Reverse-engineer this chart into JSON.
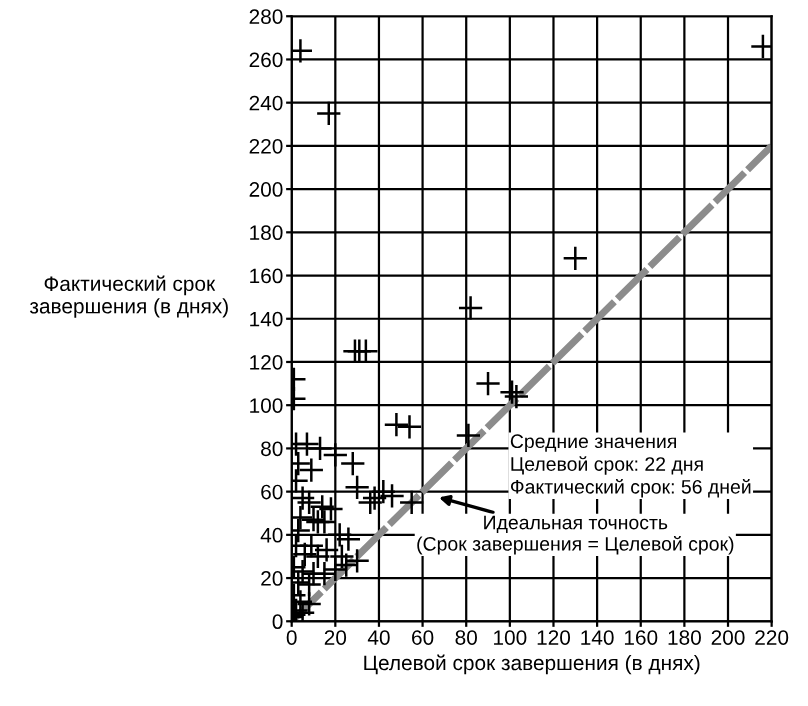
{
  "chart_data": {
    "type": "scatter",
    "xlabel": "Целевой срок завершения (в днях)",
    "ylabel": "Фактический срок\nзавершения (в днях)",
    "xlim": [
      0,
      220
    ],
    "ylim": [
      0,
      280
    ],
    "xticks": [
      0,
      20,
      40,
      60,
      80,
      100,
      120,
      140,
      160,
      180,
      200,
      220
    ],
    "yticks": [
      0,
      20,
      40,
      60,
      80,
      100,
      120,
      140,
      160,
      180,
      200,
      220,
      240,
      260,
      280
    ],
    "grid": true,
    "series": [
      {
        "marker": "cross",
        "color": "#000000",
        "x": [
          4,
          17,
          216,
          130,
          82,
          29,
          31,
          34,
          1,
          1,
          90,
          101,
          103,
          48,
          54,
          81,
          2,
          7,
          13,
          20,
          28,
          3,
          9,
          30,
          2,
          42,
          46,
          36,
          38,
          55,
          5,
          8,
          14,
          18,
          4,
          10,
          12,
          15,
          3,
          22,
          26,
          2,
          9,
          16,
          6,
          12,
          23,
          30,
          1,
          5,
          10,
          15,
          20,
          25,
          3,
          8,
          1,
          4,
          8,
          2,
          1,
          0,
          5
        ],
        "values": [
          264,
          235,
          266,
          168,
          145,
          125,
          125,
          125,
          112,
          103,
          110,
          106,
          104,
          91,
          90,
          86,
          82,
          82,
          80,
          77,
          73,
          73,
          70,
          62,
          65,
          60,
          58,
          55,
          57,
          55,
          57,
          55,
          53,
          52,
          48,
          47,
          46,
          46,
          42,
          40,
          38,
          35,
          35,
          33,
          31,
          30,
          30,
          28,
          25,
          23,
          22,
          22,
          24,
          26,
          18,
          17,
          12,
          9,
          8,
          5,
          3,
          2,
          4
        ]
      },
      {
        "type": "line",
        "color": "#8c8c8c",
        "x": [
          0,
          220
        ],
        "values": [
          0,
          220
        ],
        "line_style": "dashed"
      }
    ],
    "annotations": [
      "Средние значения\nЦелевой срок: 22 дня\nФактический срок: 56 дней",
      {
        "text": "Идеальная точность\n(Срок завершения = Целевой срок)",
        "x": 65,
        "y": 58
      }
    ]
  }
}
